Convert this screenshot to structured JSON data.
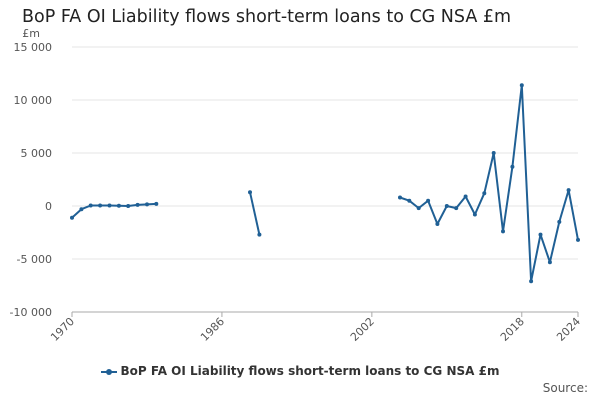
{
  "title": "BoP FA OI Liability flows short-term loans to CG NSA £m",
  "source_label": "Source:",
  "chart_data": {
    "type": "line",
    "title": "BoP FA OI Liability flows short-term loans to CG NSA £m",
    "ylabel": "£m",
    "xlabel": "",
    "ylim": [
      -10000,
      15000
    ],
    "xlim": [
      1970,
      2024
    ],
    "y_ticks": [
      15000,
      10000,
      5000,
      0,
      -5000,
      -10000
    ],
    "y_tick_labels": [
      "15 000",
      "10 000",
      "5 000",
      "0",
      "-5 000",
      "-10 000"
    ],
    "x_ticks": [
      1970,
      1986,
      2002,
      2018,
      2024
    ],
    "x_tick_labels": [
      "1970",
      "1986",
      "2002",
      "2018",
      "2024"
    ],
    "grid": "horizontal",
    "legend_position": "bottom",
    "color": "#206095",
    "series": [
      {
        "name": "BoP FA OI Liability flows short-term loans to CG NSA £m",
        "points": [
          [
            1970,
            -1100
          ],
          [
            1971,
            -300
          ],
          [
            1972,
            50
          ],
          [
            1973,
            50
          ],
          [
            1974,
            50
          ],
          [
            1975,
            30
          ],
          [
            1976,
            0
          ],
          [
            1977,
            100
          ],
          [
            1978,
            150
          ],
          [
            1979,
            200
          ],
          [
            1980,
            null
          ],
          [
            1989,
            1300
          ],
          [
            1990,
            -2700
          ],
          [
            1991,
            null
          ],
          [
            2005,
            800
          ],
          [
            2006,
            500
          ],
          [
            2007,
            -200
          ],
          [
            2008,
            500
          ],
          [
            2009,
            -1700
          ],
          [
            2010,
            0
          ],
          [
            2011,
            -200
          ],
          [
            2012,
            900
          ],
          [
            2013,
            -800
          ],
          [
            2014,
            1200
          ],
          [
            2015,
            5000
          ],
          [
            2016,
            -2400
          ],
          [
            2017,
            3700
          ],
          [
            2018,
            11400
          ],
          [
            2019,
            -7100
          ],
          [
            2020,
            -2700
          ],
          [
            2021,
            -5300
          ],
          [
            2022,
            -1500
          ],
          [
            2023,
            1500
          ],
          [
            2024,
            -3200
          ]
        ]
      }
    ]
  }
}
